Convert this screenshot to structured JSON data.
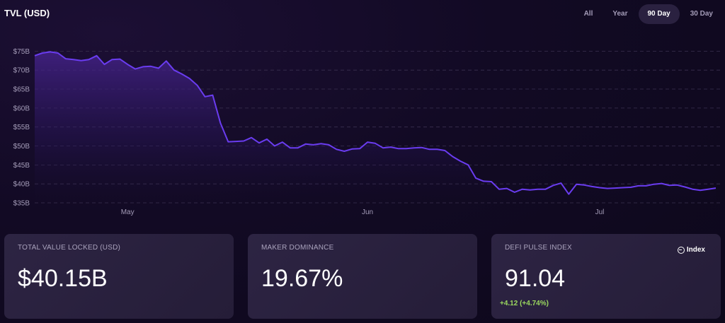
{
  "header": {
    "title": "TVL (USD)"
  },
  "range_tabs": [
    {
      "label": "All",
      "active": false
    },
    {
      "label": "Year",
      "active": false
    },
    {
      "label": "90 Day",
      "active": true
    },
    {
      "label": "30 Day",
      "active": false
    }
  ],
  "colors": {
    "line": "#6a3cf0",
    "accent_green": "#9bd85f",
    "grid": "#3a3050"
  },
  "chart_data": {
    "type": "area",
    "title": "TVL (USD)",
    "ylabel": "",
    "xlabel": "",
    "ylim": [
      35,
      76
    ],
    "yticks": [
      {
        "value": 75,
        "label": "$75B"
      },
      {
        "value": 70,
        "label": "$70B"
      },
      {
        "value": 65,
        "label": "$65B"
      },
      {
        "value": 60,
        "label": "$60B"
      },
      {
        "value": 55,
        "label": "$55B"
      },
      {
        "value": 50,
        "label": "$50B"
      },
      {
        "value": 45,
        "label": "$45B"
      },
      {
        "value": 40,
        "label": "$40B"
      },
      {
        "value": 35,
        "label": "$35B"
      }
    ],
    "xticks": [
      {
        "value": 13,
        "label": "May"
      },
      {
        "value": 44,
        "label": "Jun"
      },
      {
        "value": 74,
        "label": "Jul"
      }
    ],
    "x_range": [
      1,
      89
    ],
    "grid": true,
    "series": [
      {
        "values": [
          73.8,
          74.5,
          74.8,
          74.5,
          73.0,
          72.8,
          72.5,
          72.8,
          73.8,
          71.5,
          72.8,
          72.9,
          71.5,
          70.3,
          70.9,
          71.0,
          70.5,
          72.4,
          70.0,
          69.0,
          67.8,
          66.0,
          63.0,
          63.4,
          56.0,
          51.1,
          51.2,
          51.3,
          52.2,
          50.8,
          51.8,
          50.0,
          51.0,
          49.5,
          49.5,
          50.5,
          50.3,
          50.6,
          50.3,
          49.1,
          48.6,
          49.2,
          49.3,
          51.0,
          50.7,
          49.5,
          49.7,
          49.3,
          49.3,
          49.5,
          49.6,
          49.1,
          49.1,
          48.8,
          47.2,
          46.0,
          45.0,
          41.5,
          40.7,
          40.6,
          38.6,
          38.8,
          37.8,
          38.6,
          38.4,
          38.6,
          38.6,
          39.6,
          40.2,
          37.3,
          39.9,
          39.7,
          39.3,
          39.0,
          38.8,
          38.9,
          39.0,
          39.1,
          39.5,
          39.5,
          39.9,
          40.1,
          39.6,
          39.7,
          39.2,
          38.6,
          38.3,
          38.6,
          38.9
        ]
      }
    ]
  },
  "cards": [
    {
      "label": "TOTAL VALUE LOCKED (USD)",
      "value": "$40.15B"
    },
    {
      "label": "MAKER DOMINANCE",
      "value": "19.67%"
    },
    {
      "label": "DEFI PULSE INDEX",
      "value": "91.04",
      "change": "+4.12",
      "change_pct": "(+4.74%)",
      "badge": "Index"
    }
  ]
}
